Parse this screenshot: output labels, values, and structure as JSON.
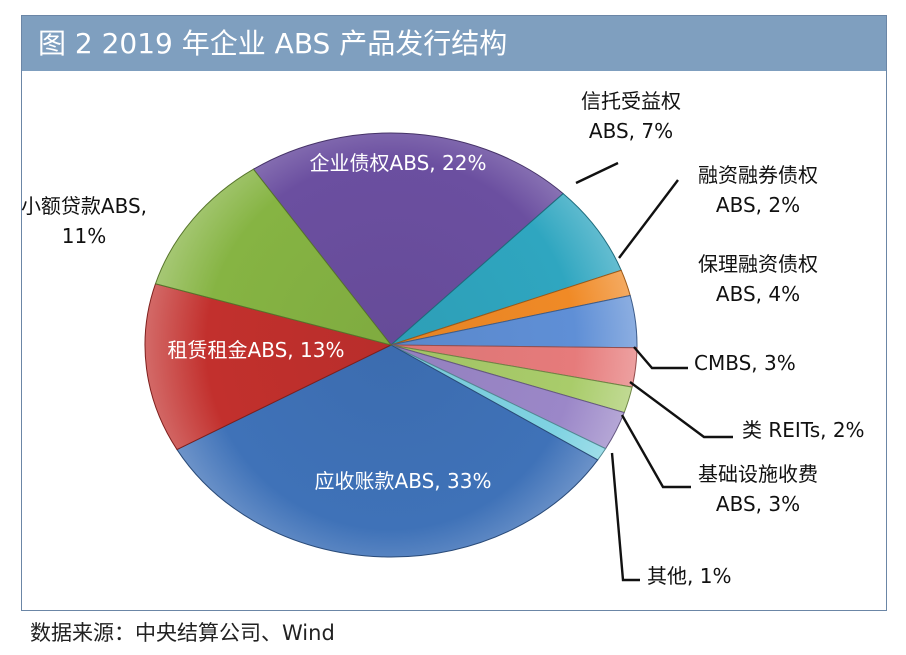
{
  "title": "图 2  2019 年企业 ABS 产品发行结构",
  "source": "数据来源：中央结算公司、Wind",
  "chart_data": {
    "type": "pie",
    "title": "图 2  2019 年企业 ABS 产品发行结构",
    "slices": [
      {
        "label_lines": [
          "企业债权ABS, 22%"
        ],
        "value": 22,
        "color": "#6b4fa0"
      },
      {
        "label_lines": [
          "信托受益权",
          "ABS, 7%"
        ],
        "value": 7,
        "color": "#2fa6c0"
      },
      {
        "label_lines": [
          "融资融券债权",
          "ABS, 2%"
        ],
        "value": 2,
        "color": "#f08a26"
      },
      {
        "label_lines": [
          "保理融资债权",
          "ABS, 4%"
        ],
        "value": 4,
        "color": "#5f8fd6"
      },
      {
        "label_lines": [
          "CMBS, 3%"
        ],
        "value": 3,
        "color": "#e67b7b"
      },
      {
        "label_lines": [
          "类 REITs, 2%"
        ],
        "value": 2,
        "color": "#a9cc6a"
      },
      {
        "label_lines": [
          "基础设施收费",
          "ABS, 3%"
        ],
        "value": 3,
        "color": "#9b87c8"
      },
      {
        "label_lines": [
          "其他, 1%"
        ],
        "value": 1,
        "color": "#7fd3e2"
      },
      {
        "label_lines": [
          "应收账款ABS, 33%"
        ],
        "value": 33,
        "color": "#3f72b8"
      },
      {
        "label_lines": [
          "租赁租金ABS, 13%"
        ],
        "value": 13,
        "color": "#c2302d"
      },
      {
        "label_lines": [
          "小额贷款ABS,",
          "11%"
        ],
        "value": 11,
        "color": "#86b443"
      }
    ]
  }
}
